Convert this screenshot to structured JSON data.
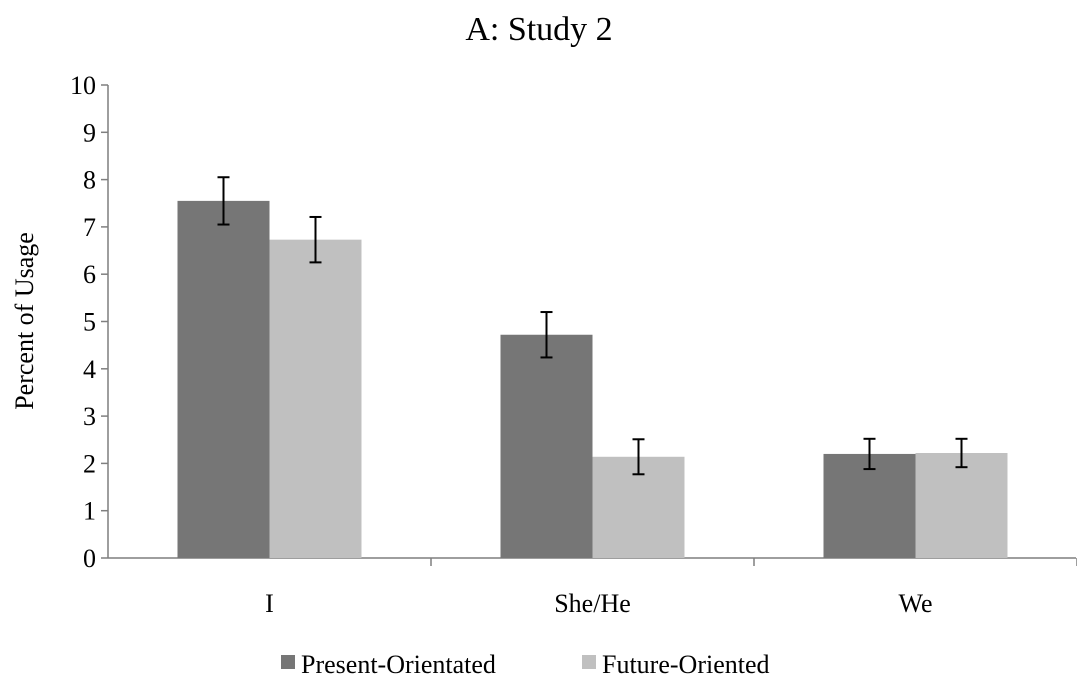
{
  "chart_data": {
    "type": "bar",
    "title": "A: Study 2",
    "xlabel": "",
    "ylabel": "Percent of Usage",
    "ylim": [
      0,
      10
    ],
    "yticks": [
      0,
      1,
      2,
      3,
      4,
      5,
      6,
      7,
      8,
      9,
      10
    ],
    "categories": [
      "I",
      "She/He",
      "We"
    ],
    "series": [
      {
        "name": "Present-Orientated",
        "color": "#767676",
        "values": [
          7.55,
          4.72,
          2.2
        ],
        "errors": [
          0.5,
          0.48,
          0.32
        ]
      },
      {
        "name": "Future-Oriented",
        "color": "#c0c0c0",
        "values": [
          6.73,
          2.14,
          2.22
        ],
        "errors": [
          0.48,
          0.37,
          0.3
        ]
      }
    ],
    "grid": false,
    "legend_position": "bottom"
  }
}
